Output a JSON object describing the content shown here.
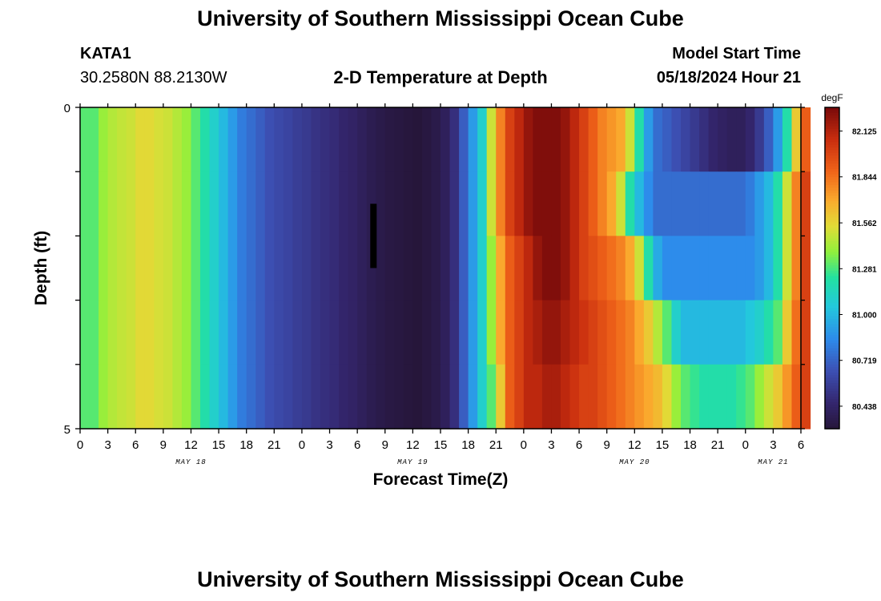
{
  "header": {
    "title": "University of Southern Mississippi Ocean Cube",
    "station_id": "KATA1",
    "coordinates": "30.2580N  88.2130W",
    "subtitle": "2-D Temperature at Depth",
    "model_start_label": "Model Start Time",
    "model_start_time": "05/18/2024 Hour 21"
  },
  "footer": {
    "title": "University of Southern Mississippi Ocean Cube"
  },
  "chart_data": {
    "type": "heatmap",
    "title": "2-D Temperature at Depth",
    "xlabel": "Forecast Time(Z)",
    "ylabel": "Depth (ft)",
    "x_start": "05/18/2024 00Z",
    "x_step_hours": 1,
    "x_tick_labels": [
      "0",
      "3",
      "6",
      "9",
      "12",
      "15",
      "18",
      "21",
      "0",
      "3",
      "6",
      "9",
      "12",
      "15",
      "18",
      "21",
      "0",
      "3",
      "6",
      "9",
      "12",
      "15",
      "18",
      "21",
      "0",
      "3",
      "6"
    ],
    "x_day_labels": [
      {
        "label": "MAY 18",
        "hour": 12
      },
      {
        "label": "MAY 19",
        "hour": 36
      },
      {
        "label": "MAY 20",
        "hour": 60
      },
      {
        "label": "MAY 21",
        "hour": 75
      }
    ],
    "xlim_hours": [
      0,
      78
    ],
    "ylim": [
      0,
      5
    ],
    "y_tick_labels": [
      "0",
      "5"
    ],
    "depth_layers_ft": [
      0.5,
      1.5,
      2.5,
      3.5,
      4.5
    ],
    "colorbar": {
      "unit": "degF",
      "ticks": [
        "82.125",
        "81.844",
        "81.562",
        "81.281",
        "81.000",
        "80.719",
        "80.438"
      ],
      "min": 80.3,
      "max": 82.27
    },
    "temperature_hourly": [
      [
        81.3,
        81.3,
        81.4,
        81.45,
        81.48,
        81.5,
        81.55,
        81.55,
        81.52,
        81.5,
        81.45,
        81.4,
        81.3,
        81.2,
        81.1,
        81.0,
        80.9,
        80.8,
        80.75,
        80.7,
        80.65,
        80.62,
        80.6,
        80.57,
        80.55,
        80.52,
        80.5,
        80.48,
        80.45,
        80.43,
        80.4,
        80.37,
        80.35,
        80.33,
        80.32,
        80.31,
        80.3,
        80.32,
        80.35,
        80.4,
        80.5,
        80.7,
        80.9,
        81.1,
        81.5,
        81.8,
        82.0,
        82.1,
        82.2,
        82.25,
        82.25,
        82.25,
        82.2,
        82.1,
        82.0,
        81.9,
        81.8,
        81.75,
        81.7,
        81.5,
        81.2,
        80.9,
        80.75,
        80.7,
        80.65,
        80.6,
        80.55,
        80.5,
        80.45,
        80.42,
        80.4,
        80.4,
        80.45,
        80.55,
        80.7,
        80.9,
        81.2,
        81.6,
        81.9
      ],
      [
        81.3,
        81.3,
        81.4,
        81.45,
        81.48,
        81.5,
        81.55,
        81.55,
        81.52,
        81.5,
        81.45,
        81.4,
        81.3,
        81.2,
        81.1,
        81.0,
        80.9,
        80.8,
        80.75,
        80.7,
        80.65,
        80.62,
        80.6,
        80.57,
        80.55,
        80.52,
        80.5,
        80.48,
        80.45,
        80.43,
        80.4,
        80.37,
        80.35,
        80.33,
        80.32,
        80.31,
        80.3,
        80.32,
        80.35,
        80.4,
        80.5,
        80.7,
        80.9,
        81.1,
        81.5,
        81.8,
        82.0,
        82.1,
        82.2,
        82.25,
        82.25,
        82.25,
        82.2,
        82.1,
        82.0,
        81.9,
        81.8,
        81.7,
        81.5,
        81.2,
        81.0,
        80.85,
        80.75,
        80.75,
        80.75,
        80.75,
        80.75,
        80.75,
        80.75,
        80.75,
        80.75,
        80.75,
        80.8,
        80.9,
        81.0,
        81.2,
        81.5,
        81.8,
        82.0
      ],
      [
        81.3,
        81.3,
        81.4,
        81.45,
        81.48,
        81.5,
        81.55,
        81.55,
        81.52,
        81.5,
        81.45,
        81.4,
        81.3,
        81.2,
        81.1,
        81.0,
        80.9,
        80.8,
        80.75,
        80.7,
        80.65,
        80.62,
        80.6,
        80.57,
        80.55,
        80.52,
        80.5,
        80.48,
        80.45,
        80.43,
        80.4,
        80.37,
        80.35,
        80.33,
        80.32,
        80.31,
        80.3,
        80.32,
        80.35,
        80.4,
        80.5,
        80.7,
        80.9,
        81.1,
        81.4,
        81.7,
        81.9,
        82.0,
        82.1,
        82.2,
        82.25,
        82.25,
        82.2,
        82.1,
        82.0,
        81.95,
        81.9,
        81.85,
        81.8,
        81.7,
        81.5,
        81.2,
        80.95,
        80.85,
        80.85,
        80.85,
        80.85,
        80.85,
        80.85,
        80.85,
        80.85,
        80.85,
        80.85,
        80.9,
        81.0,
        81.2,
        81.5,
        81.8,
        82.0
      ],
      [
        81.3,
        81.3,
        81.4,
        81.45,
        81.48,
        81.5,
        81.55,
        81.55,
        81.52,
        81.5,
        81.45,
        81.4,
        81.3,
        81.2,
        81.1,
        81.0,
        80.9,
        80.8,
        80.75,
        80.7,
        80.65,
        80.62,
        80.6,
        80.57,
        80.55,
        80.52,
        80.5,
        80.48,
        80.45,
        80.43,
        80.4,
        80.37,
        80.35,
        80.33,
        80.32,
        80.31,
        80.3,
        80.32,
        80.35,
        80.4,
        80.5,
        80.7,
        80.9,
        81.1,
        81.4,
        81.7,
        81.9,
        82.0,
        82.1,
        82.15,
        82.2,
        82.2,
        82.15,
        82.1,
        82.05,
        82.0,
        81.95,
        81.9,
        81.85,
        81.8,
        81.7,
        81.6,
        81.45,
        81.3,
        81.1,
        81.0,
        81.0,
        81.0,
        81.0,
        81.0,
        81.0,
        81.0,
        81.05,
        81.1,
        81.2,
        81.3,
        81.6,
        81.85,
        82.0
      ],
      [
        81.3,
        81.3,
        81.4,
        81.45,
        81.48,
        81.5,
        81.55,
        81.55,
        81.52,
        81.5,
        81.45,
        81.4,
        81.3,
        81.2,
        81.1,
        81.0,
        80.9,
        80.8,
        80.75,
        80.7,
        80.65,
        80.62,
        80.6,
        80.57,
        80.55,
        80.52,
        80.5,
        80.48,
        80.45,
        80.43,
        80.4,
        80.37,
        80.35,
        80.33,
        80.32,
        80.31,
        80.3,
        80.32,
        80.35,
        80.4,
        80.5,
        80.7,
        80.9,
        81.1,
        81.3,
        81.6,
        81.9,
        82.0,
        82.1,
        82.1,
        82.15,
        82.15,
        82.1,
        82.05,
        82.0,
        82.0,
        81.95,
        81.9,
        81.85,
        81.8,
        81.75,
        81.7,
        81.65,
        81.55,
        81.4,
        81.3,
        81.25,
        81.2,
        81.2,
        81.2,
        81.2,
        81.25,
        81.3,
        81.4,
        81.5,
        81.6,
        81.75,
        81.9,
        82.0
      ]
    ]
  }
}
